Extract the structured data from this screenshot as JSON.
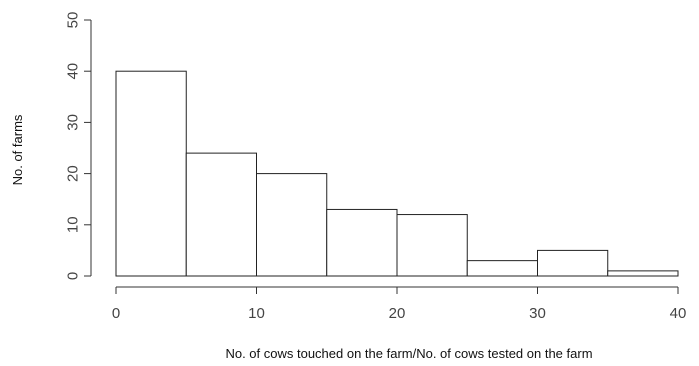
{
  "chart_data": {
    "type": "bar",
    "subtype": "histogram",
    "bins": [
      {
        "start": 0,
        "end": 5,
        "value": 40
      },
      {
        "start": 5,
        "end": 10,
        "value": 24
      },
      {
        "start": 10,
        "end": 15,
        "value": 20
      },
      {
        "start": 15,
        "end": 20,
        "value": 13
      },
      {
        "start": 20,
        "end": 25,
        "value": 12
      },
      {
        "start": 25,
        "end": 30,
        "value": 3
      },
      {
        "start": 30,
        "end": 35,
        "value": 5
      },
      {
        "start": 35,
        "end": 40,
        "value": 1
      }
    ],
    "xlabel": "No. of cows touched on the farm/No. of cows tested on the farm",
    "ylabel": "No. of farms",
    "xlim": [
      0,
      40
    ],
    "ylim": [
      0,
      50
    ],
    "xticks": [
      "0",
      "10",
      "20",
      "30",
      "40"
    ],
    "yticks": [
      "0",
      "10",
      "20",
      "30",
      "40",
      "50"
    ],
    "grid": false,
    "colors": {
      "bar_fill": "#ffffff",
      "bar_stroke": "#222222",
      "axis": "#333333"
    }
  }
}
